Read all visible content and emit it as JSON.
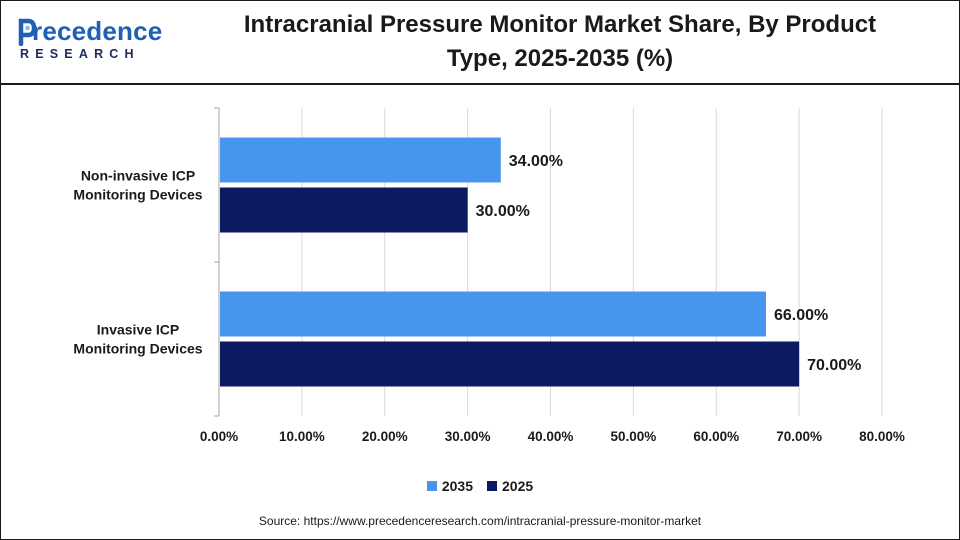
{
  "header": {
    "logo_word": "recedence",
    "logo_sub": "RESEARCH",
    "title_line1": "Intracranial Pressure Monitor Market Share, By Product",
    "title_line2": "Type, 2025-2035 (%)"
  },
  "legend": [
    {
      "name": "2035",
      "color": "#4895ef"
    },
    {
      "name": "2025",
      "color": "#0c1a62"
    }
  ],
  "source": "Source: https://www.precedenceresearch.com/intracranial-pressure-monitor-market",
  "chart_data": {
    "type": "bar",
    "orientation": "horizontal",
    "categories": [
      "Non-invasive ICP\nMonitoring Devices",
      "Invasive ICP\nMonitoring Devices"
    ],
    "series": [
      {
        "name": "2035",
        "values": [
          34.0,
          66.0
        ],
        "labels": [
          "34.00%",
          "66.00%"
        ],
        "color": "#4895ef"
      },
      {
        "name": "2025",
        "values": [
          30.0,
          70.0
        ],
        "labels": [
          "30.00%",
          "70.00%"
        ],
        "color": "#0c1a62"
      }
    ],
    "xlim": [
      0,
      80
    ],
    "xticks": [
      "0.00%",
      "10.00%",
      "20.00%",
      "30.00%",
      "40.00%",
      "50.00%",
      "60.00%",
      "70.00%",
      "80.00%"
    ],
    "xtick_values": [
      0,
      10,
      20,
      30,
      40,
      50,
      60,
      70,
      80
    ],
    "grid": true,
    "legend_position": "bottom",
    "title": "Intracranial Pressure Monitor Market Share, By Product Type, 2025-2035 (%)"
  }
}
